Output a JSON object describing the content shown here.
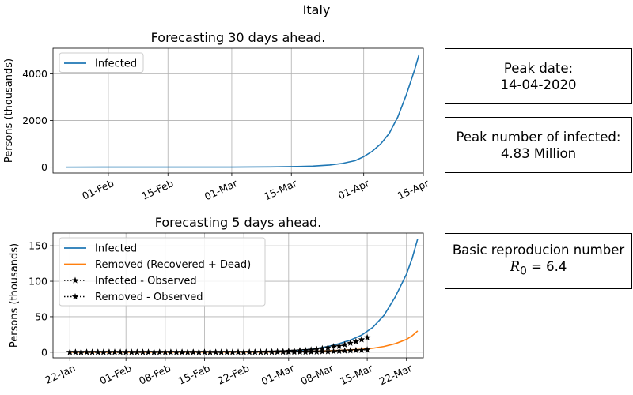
{
  "figure": {
    "suptitle": "Italy",
    "boxes": {
      "peak_date_label": "Peak date:",
      "peak_date_value": "14-04-2020",
      "peak_infected_label": "Peak number of infected:",
      "peak_infected_value": "4.83 Million",
      "r0_label": "Basic reproducion number",
      "r0_symbol": "R",
      "r0_subscript": "0",
      "r0_value": "= 6.4"
    }
  },
  "chart_data": [
    {
      "type": "line",
      "title": "Forecasting 30 days ahead.",
      "ylabel": "Persons (thousands)",
      "xlabel": "",
      "x_axis": "date",
      "xlim": [
        "2020-01-19",
        "2020-04-15"
      ],
      "ylim": [
        -250,
        5100
      ],
      "xticks": [
        {
          "date": "2020-02-01",
          "label": "01-Feb"
        },
        {
          "date": "2020-02-15",
          "label": "15-Feb"
        },
        {
          "date": "2020-03-01",
          "label": "01-Mar"
        },
        {
          "date": "2020-03-15",
          "label": "15-Mar"
        },
        {
          "date": "2020-04-01",
          "label": "01-Apr"
        },
        {
          "date": "2020-04-15",
          "label": "15-Apr"
        }
      ],
      "yticks": [
        0,
        2000,
        4000
      ],
      "grid": true,
      "legend_position": "upper-left",
      "series": [
        {
          "name": "Infected",
          "color": "#1f77b4",
          "style": "solid",
          "points": [
            [
              "2020-01-22",
              0
            ],
            [
              "2020-02-10",
              1
            ],
            [
              "2020-02-25",
              2
            ],
            [
              "2020-03-01",
              3
            ],
            [
              "2020-03-05",
              5
            ],
            [
              "2020-03-10",
              10
            ],
            [
              "2020-03-15",
              22
            ],
            [
              "2020-03-20",
              45
            ],
            [
              "2020-03-24",
              90
            ],
            [
              "2020-03-27",
              160
            ],
            [
              "2020-03-30",
              280
            ],
            [
              "2020-04-01",
              450
            ],
            [
              "2020-04-03",
              680
            ],
            [
              "2020-04-05",
              1000
            ],
            [
              "2020-04-07",
              1450
            ],
            [
              "2020-04-09",
              2150
            ],
            [
              "2020-04-11",
              3100
            ],
            [
              "2020-04-13",
              4200
            ],
            [
              "2020-04-14",
              4830
            ]
          ]
        }
      ]
    },
    {
      "type": "line",
      "title": "Forecasting 5 days ahead.",
      "ylabel": "Persons (thousands)",
      "xlabel": "",
      "x_axis": "date",
      "xlim": [
        "2020-01-19",
        "2020-03-25"
      ],
      "ylim": [
        -8,
        168
      ],
      "xticks": [
        {
          "date": "2020-01-22",
          "label": "22-Jan"
        },
        {
          "date": "2020-02-01",
          "label": "01-Feb"
        },
        {
          "date": "2020-02-08",
          "label": "08-Feb"
        },
        {
          "date": "2020-02-15",
          "label": "15-Feb"
        },
        {
          "date": "2020-02-22",
          "label": "22-Feb"
        },
        {
          "date": "2020-03-01",
          "label": "01-Mar"
        },
        {
          "date": "2020-03-08",
          "label": "08-Mar"
        },
        {
          "date": "2020-03-15",
          "label": "15-Mar"
        },
        {
          "date": "2020-03-22",
          "label": "22-Mar"
        }
      ],
      "yticks": [
        0,
        50,
        100,
        150
      ],
      "grid": true,
      "legend_position": "upper-left",
      "series": [
        {
          "name": "Infected",
          "color": "#1f77b4",
          "style": "solid",
          "points": [
            [
              "2020-01-22",
              0
            ],
            [
              "2020-02-15",
              0.2
            ],
            [
              "2020-02-25",
              0.5
            ],
            [
              "2020-03-01",
              1.5
            ],
            [
              "2020-03-05",
              4
            ],
            [
              "2020-03-08",
              8
            ],
            [
              "2020-03-10",
              12
            ],
            [
              "2020-03-12",
              17
            ],
            [
              "2020-03-14",
              24
            ],
            [
              "2020-03-16",
              35
            ],
            [
              "2020-03-18",
              52
            ],
            [
              "2020-03-20",
              78
            ],
            [
              "2020-03-22",
              110
            ],
            [
              "2020-03-23",
              132
            ],
            [
              "2020-03-24",
              160
            ]
          ]
        },
        {
          "name": "Removed (Recovered + Dead)",
          "color": "#ff7f0e",
          "style": "solid",
          "points": [
            [
              "2020-01-22",
              0
            ],
            [
              "2020-02-25",
              0.1
            ],
            [
              "2020-03-01",
              0.5
            ],
            [
              "2020-03-05",
              1.2
            ],
            [
              "2020-03-10",
              2.5
            ],
            [
              "2020-03-14",
              4
            ],
            [
              "2020-03-16",
              5.5
            ],
            [
              "2020-03-18",
              8
            ],
            [
              "2020-03-20",
              12
            ],
            [
              "2020-03-22",
              18
            ],
            [
              "2020-03-23",
              23
            ],
            [
              "2020-03-24",
              30
            ]
          ]
        },
        {
          "name": "Infected - Observed",
          "color": "#000000",
          "style": "dotted-star",
          "points": [
            [
              "2020-01-22",
              0
            ],
            [
              "2020-01-23",
              0
            ],
            [
              "2020-01-24",
              0
            ],
            [
              "2020-01-25",
              0
            ],
            [
              "2020-01-26",
              0
            ],
            [
              "2020-01-27",
              0
            ],
            [
              "2020-01-28",
              0
            ],
            [
              "2020-01-29",
              0
            ],
            [
              "2020-01-30",
              0
            ],
            [
              "2020-01-31",
              0
            ],
            [
              "2020-02-01",
              0
            ],
            [
              "2020-02-02",
              0
            ],
            [
              "2020-02-03",
              0
            ],
            [
              "2020-02-04",
              0
            ],
            [
              "2020-02-05",
              0
            ],
            [
              "2020-02-06",
              0
            ],
            [
              "2020-02-07",
              0
            ],
            [
              "2020-02-08",
              0
            ],
            [
              "2020-02-09",
              0
            ],
            [
              "2020-02-10",
              0
            ],
            [
              "2020-02-11",
              0
            ],
            [
              "2020-02-12",
              0
            ],
            [
              "2020-02-13",
              0
            ],
            [
              "2020-02-14",
              0
            ],
            [
              "2020-02-15",
              0
            ],
            [
              "2020-02-16",
              0
            ],
            [
              "2020-02-17",
              0
            ],
            [
              "2020-02-18",
              0
            ],
            [
              "2020-02-19",
              0
            ],
            [
              "2020-02-20",
              0
            ],
            [
              "2020-02-21",
              0.02
            ],
            [
              "2020-02-22",
              0.07
            ],
            [
              "2020-02-23",
              0.15
            ],
            [
              "2020-02-24",
              0.22
            ],
            [
              "2020-02-25",
              0.31
            ],
            [
              "2020-02-26",
              0.45
            ],
            [
              "2020-02-27",
              0.65
            ],
            [
              "2020-02-28",
              0.89
            ],
            [
              "2020-02-29",
              1.05
            ],
            [
              "2020-03-01",
              1.58
            ],
            [
              "2020-03-02",
              1.84
            ],
            [
              "2020-03-03",
              2.26
            ],
            [
              "2020-03-04",
              2.71
            ],
            [
              "2020-03-05",
              3.3
            ],
            [
              "2020-03-06",
              3.92
            ],
            [
              "2020-03-07",
              5.06
            ],
            [
              "2020-03-08",
              6.39
            ],
            [
              "2020-03-09",
              7.99
            ],
            [
              "2020-03-10",
              8.51
            ],
            [
              "2020-03-11",
              10.59
            ],
            [
              "2020-03-12",
              12.84
            ],
            [
              "2020-03-13",
              14.96
            ],
            [
              "2020-03-14",
              17.75
            ],
            [
              "2020-03-15",
              20.6
            ]
          ]
        },
        {
          "name": "Removed - Observed",
          "color": "#000000",
          "style": "dotted-star",
          "points": [
            [
              "2020-01-22",
              0
            ],
            [
              "2020-01-23",
              0
            ],
            [
              "2020-01-24",
              0
            ],
            [
              "2020-01-25",
              0
            ],
            [
              "2020-01-26",
              0
            ],
            [
              "2020-01-27",
              0
            ],
            [
              "2020-01-28",
              0
            ],
            [
              "2020-01-29",
              0
            ],
            [
              "2020-01-30",
              0
            ],
            [
              "2020-01-31",
              0
            ],
            [
              "2020-02-01",
              0
            ],
            [
              "2020-02-02",
              0
            ],
            [
              "2020-02-03",
              0
            ],
            [
              "2020-02-04",
              0
            ],
            [
              "2020-02-05",
              0
            ],
            [
              "2020-02-06",
              0
            ],
            [
              "2020-02-07",
              0
            ],
            [
              "2020-02-08",
              0
            ],
            [
              "2020-02-09",
              0
            ],
            [
              "2020-02-10",
              0
            ],
            [
              "2020-02-11",
              0
            ],
            [
              "2020-02-12",
              0
            ],
            [
              "2020-02-13",
              0
            ],
            [
              "2020-02-14",
              0
            ],
            [
              "2020-02-15",
              0
            ],
            [
              "2020-02-16",
              0
            ],
            [
              "2020-02-17",
              0
            ],
            [
              "2020-02-18",
              0
            ],
            [
              "2020-02-19",
              0
            ],
            [
              "2020-02-20",
              0
            ],
            [
              "2020-02-21",
              0
            ],
            [
              "2020-02-22",
              0
            ],
            [
              "2020-02-23",
              0
            ],
            [
              "2020-02-24",
              0.01
            ],
            [
              "2020-02-25",
              0.01
            ],
            [
              "2020-02-26",
              0.05
            ],
            [
              "2020-02-27",
              0.05
            ],
            [
              "2020-02-28",
              0.07
            ],
            [
              "2020-02-29",
              0.07
            ],
            [
              "2020-03-01",
              0.1
            ],
            [
              "2020-03-02",
              0.2
            ],
            [
              "2020-03-03",
              0.23
            ],
            [
              "2020-03-04",
              0.3
            ],
            [
              "2020-03-05",
              0.42
            ],
            [
              "2020-03-06",
              0.55
            ],
            [
              "2020-03-07",
              0.78
            ],
            [
              "2020-03-08",
              0.95
            ],
            [
              "2020-03-09",
              1.08
            ],
            [
              "2020-03-10",
              1.64
            ],
            [
              "2020-03-11",
              1.87
            ],
            [
              "2020-03-12",
              2.28
            ],
            [
              "2020-03-13",
              2.56
            ],
            [
              "2020-03-14",
              2.86
            ],
            [
              "2020-03-15",
              3.5
            ]
          ]
        }
      ]
    }
  ]
}
